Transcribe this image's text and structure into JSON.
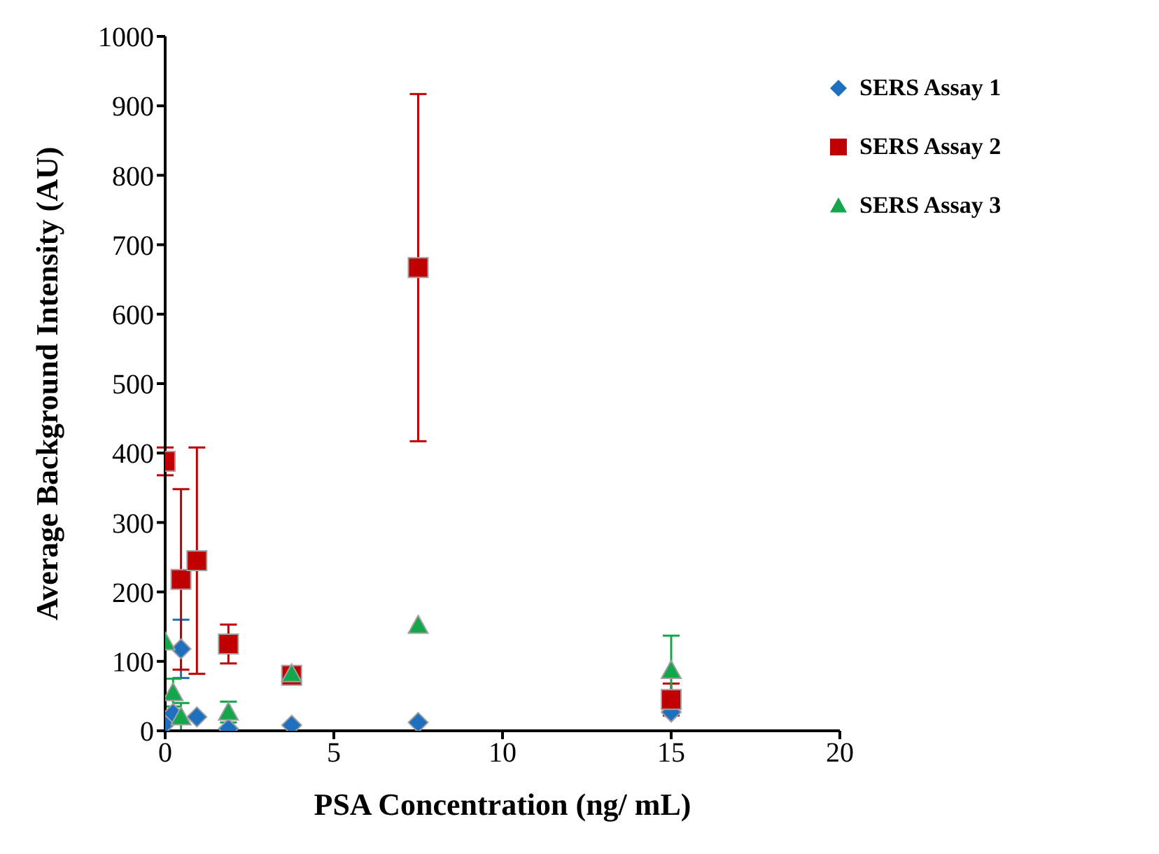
{
  "chart_data": {
    "type": "scatter",
    "xlabel": "PSA Concentration (ng/ mL)",
    "ylabel": "Average Background Intensity (AU)",
    "xlim": [
      0,
      20
    ],
    "xticks": [
      0,
      5,
      10,
      15,
      20
    ],
    "ylim": [
      0,
      1000
    ],
    "yticks": [
      0,
      100,
      200,
      300,
      400,
      500,
      600,
      700,
      800,
      900,
      1000
    ],
    "legend": "top right",
    "series": [
      {
        "name": "SERS Assay 1",
        "color": "#1f6fbf",
        "marker": "diamond",
        "x": [
          0,
          0.234,
          0.469,
          0.94,
          1.875,
          3.75,
          7.5,
          15
        ],
        "values": [
          10,
          25,
          118,
          20,
          3,
          8,
          12,
          27
        ],
        "errors": [
          null,
          null,
          42,
          null,
          null,
          null,
          null,
          null
        ]
      },
      {
        "name": "SERS Assay 2",
        "color": "#c00000",
        "marker": "square",
        "x": [
          0,
          0.469,
          0.94,
          1.875,
          3.75,
          7.5,
          15
        ],
        "values": [
          388,
          218,
          245,
          125,
          80,
          667,
          45
        ],
        "errors": [
          20,
          130,
          163,
          28,
          13,
          250,
          23
        ]
      },
      {
        "name": "SERS Assay 3",
        "color": "#13a64a",
        "marker": "triangle",
        "x": [
          0,
          0.234,
          0.469,
          1.875,
          3.75,
          7.5,
          15
        ],
        "values": [
          128,
          55,
          20,
          27,
          82,
          152,
          87
        ],
        "errors": [
          null,
          20,
          20,
          15,
          null,
          null,
          50
        ]
      }
    ]
  }
}
